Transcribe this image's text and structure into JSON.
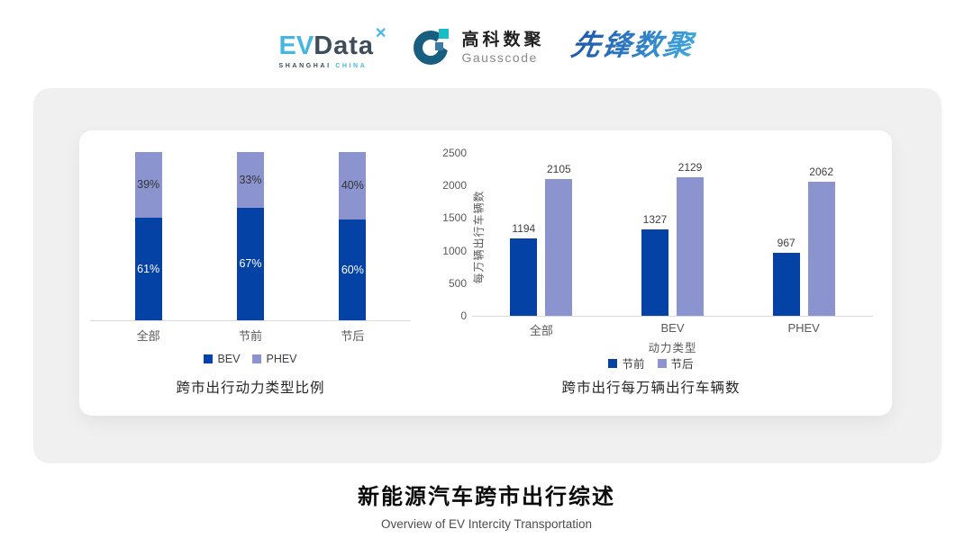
{
  "header": {
    "evdata": {
      "ev": "EV",
      "data": "Data",
      "star_icon": "x-star",
      "sub_left": "SHANGHAI",
      "sub_right": "CHINA"
    },
    "gausscode": {
      "cn": "高科数聚",
      "en": "Gausscode",
      "icon": "g-ring-icon"
    },
    "pioneer": {
      "text": "先锋数聚"
    }
  },
  "colors": {
    "primary_dark_blue": "#0442a5",
    "secondary_light_blue": "#8b94ce",
    "axis_text": "#595959",
    "value_label": "#404040",
    "card_bg": "#f0f0f1"
  },
  "chart_data": [
    {
      "type": "bar",
      "subtype": "stacked-100",
      "title": "跨市出行动力类型比例",
      "categories": [
        "全部",
        "节前",
        "节后"
      ],
      "series": [
        {
          "name": "BEV",
          "values": [
            61,
            67,
            60
          ],
          "color": "#0442a5",
          "label_color": "#ffffff"
        },
        {
          "name": "PHEV",
          "values": [
            39,
            33,
            40
          ],
          "color": "#8b94ce",
          "label_color": "#333333"
        }
      ],
      "unit": "%",
      "ylim": [
        0,
        100
      ],
      "grid": false,
      "legend_position": "bottom"
    },
    {
      "type": "bar",
      "subtype": "grouped",
      "title": "跨市出行每万辆出行车辆数",
      "categories": [
        "全部",
        "BEV",
        "PHEV"
      ],
      "series": [
        {
          "name": "节前",
          "values": [
            1194,
            1327,
            967
          ],
          "color": "#0442a5"
        },
        {
          "name": "节后",
          "values": [
            2105,
            2129,
            2062
          ],
          "color": "#8b94ce"
        }
      ],
      "xlabel": "动力类型",
      "ylabel": "每万辆出行车辆数",
      "ylim": [
        0,
        2500
      ],
      "yticks": [
        0,
        500,
        1000,
        1500,
        2000,
        2500
      ],
      "grid": false,
      "legend_position": "bottom"
    }
  ],
  "footer": {
    "title": "新能源汽车跨市出行综述",
    "subtitle": "Overview of EV Intercity Transportation"
  }
}
